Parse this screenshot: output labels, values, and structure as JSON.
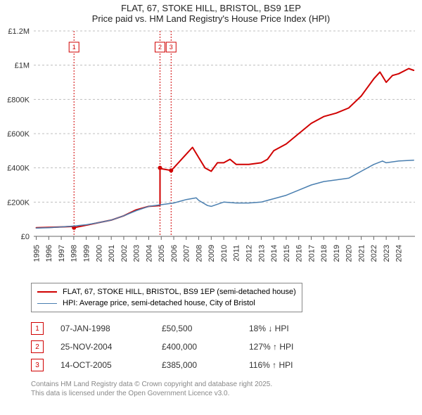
{
  "title_line1": "FLAT, 67, STOKE HILL, BRISTOL, BS9 1EP",
  "title_line2": "Price paid vs. HM Land Registry's House Price Index (HPI)",
  "chart": {
    "type": "line",
    "background_color": "#ffffff",
    "plot_bg": "#ffffff",
    "grid_color": "#bfbfbf",
    "grid_dash": "3,3",
    "axis_color": "#666666",
    "x_years": [
      1995,
      1996,
      1997,
      1998,
      1999,
      2000,
      2001,
      2002,
      2003,
      2004,
      2005,
      2006,
      2007,
      2008,
      2009,
      2010,
      2011,
      2012,
      2013,
      2014,
      2015,
      2016,
      2017,
      2018,
      2019,
      2020,
      2021,
      2022,
      2023,
      2024
    ],
    "y_ticks": [
      0,
      200000,
      400000,
      600000,
      800000,
      1000000,
      1200000
    ],
    "y_tick_labels": [
      "£0",
      "£200K",
      "£400K",
      "£600K",
      "£800K",
      "£1M",
      "£1.2M"
    ],
    "ylim": [
      0,
      1200000
    ],
    "xlim": [
      1994.8,
      2025.3
    ],
    "series": [
      {
        "name": "price_paid",
        "color": "#d00000",
        "width": 2,
        "points": [
          [
            1995,
            50000
          ],
          [
            1996,
            52000
          ],
          [
            1997,
            55000
          ],
          [
            1998,
            58000
          ],
          [
            1998.02,
            50500
          ],
          [
            1999,
            65000
          ],
          [
            2000,
            80000
          ],
          [
            2001,
            95000
          ],
          [
            2002,
            120000
          ],
          [
            2003,
            155000
          ],
          [
            2004,
            175000
          ],
          [
            2004.9,
            180000
          ],
          [
            2004.9,
            400000
          ],
          [
            2005,
            395000
          ],
          [
            2005.79,
            385000
          ],
          [
            2006,
            400000
          ],
          [
            2007,
            480000
          ],
          [
            2007.5,
            520000
          ],
          [
            2008,
            460000
          ],
          [
            2008.5,
            400000
          ],
          [
            2009,
            380000
          ],
          [
            2009.5,
            430000
          ],
          [
            2010,
            430000
          ],
          [
            2010.5,
            450000
          ],
          [
            2011,
            420000
          ],
          [
            2012,
            420000
          ],
          [
            2013,
            430000
          ],
          [
            2013.5,
            450000
          ],
          [
            2014,
            500000
          ],
          [
            2015,
            540000
          ],
          [
            2016,
            600000
          ],
          [
            2017,
            660000
          ],
          [
            2018,
            700000
          ],
          [
            2019,
            720000
          ],
          [
            2020,
            750000
          ],
          [
            2021,
            820000
          ],
          [
            2022,
            920000
          ],
          [
            2022.5,
            960000
          ],
          [
            2023,
            900000
          ],
          [
            2023.5,
            940000
          ],
          [
            2024,
            950000
          ],
          [
            2024.8,
            980000
          ],
          [
            2025.2,
            970000
          ]
        ]
      },
      {
        "name": "hpi",
        "color": "#4a7fb0",
        "width": 1.5,
        "points": [
          [
            1995,
            48000
          ],
          [
            1996,
            50000
          ],
          [
            1997,
            55000
          ],
          [
            1998,
            60000
          ],
          [
            1999,
            68000
          ],
          [
            2000,
            80000
          ],
          [
            2001,
            95000
          ],
          [
            2002,
            120000
          ],
          [
            2003,
            150000
          ],
          [
            2004,
            175000
          ],
          [
            2005,
            185000
          ],
          [
            2006,
            195000
          ],
          [
            2007,
            215000
          ],
          [
            2007.8,
            225000
          ],
          [
            2008,
            210000
          ],
          [
            2008.7,
            180000
          ],
          [
            2009,
            175000
          ],
          [
            2010,
            200000
          ],
          [
            2011,
            195000
          ],
          [
            2012,
            195000
          ],
          [
            2013,
            200000
          ],
          [
            2014,
            220000
          ],
          [
            2015,
            240000
          ],
          [
            2016,
            270000
          ],
          [
            2017,
            300000
          ],
          [
            2018,
            320000
          ],
          [
            2019,
            330000
          ],
          [
            2020,
            340000
          ],
          [
            2021,
            380000
          ],
          [
            2022,
            420000
          ],
          [
            2022.7,
            440000
          ],
          [
            2023,
            430000
          ],
          [
            2024,
            440000
          ],
          [
            2025.2,
            445000
          ]
        ]
      }
    ],
    "sale_markers": [
      {
        "n": "1",
        "year": 1998.02,
        "price": 50500
      },
      {
        "n": "2",
        "year": 2004.9,
        "price": 400000
      },
      {
        "n": "3",
        "year": 2005.79,
        "price": 385000
      }
    ]
  },
  "legend": {
    "items": [
      {
        "color": "#d00000",
        "width": 2,
        "label": "FLAT, 67, STOKE HILL, BRISTOL, BS9 1EP (semi-detached house)"
      },
      {
        "color": "#4a7fb0",
        "width": 1.5,
        "label": "HPI: Average price, semi-detached house, City of Bristol"
      }
    ]
  },
  "transactions": [
    {
      "n": "1",
      "date": "07-JAN-1998",
      "price": "£50,500",
      "hpi": "18% ↓ HPI"
    },
    {
      "n": "2",
      "date": "25-NOV-2004",
      "price": "£400,000",
      "hpi": "127% ↑ HPI"
    },
    {
      "n": "3",
      "date": "14-OCT-2005",
      "price": "£385,000",
      "hpi": "116% ↑ HPI"
    }
  ],
  "footer_line1": "Contains HM Land Registry data © Crown copyright and database right 2025.",
  "footer_line2": "This data is licensed under the Open Government Licence v3.0."
}
